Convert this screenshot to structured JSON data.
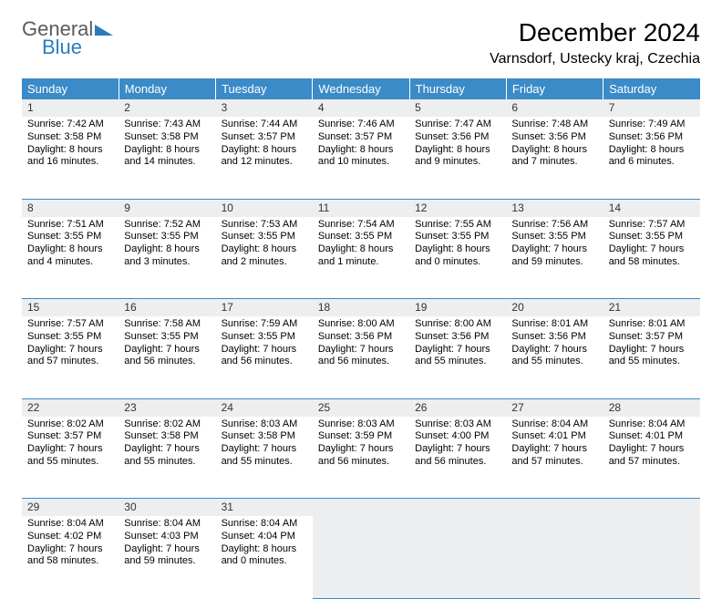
{
  "logo": {
    "line1": "General",
    "line2": "Blue",
    "icon_color": "#2b7bbd",
    "text_gray": "#5a5a5a"
  },
  "title": "December 2024",
  "location": "Varnsdorf, Ustecky kraj, Czechia",
  "colors": {
    "header_bg": "#3b8bc8",
    "header_fg": "#ffffff",
    "cell_border": "#3b8bc8",
    "daynum_bg": "#eceeef",
    "body_bg": "#ffffff"
  },
  "day_headers": [
    "Sunday",
    "Monday",
    "Tuesday",
    "Wednesday",
    "Thursday",
    "Friday",
    "Saturday"
  ],
  "weeks": [
    [
      {
        "n": "1",
        "sr": "7:42 AM",
        "ss": "3:58 PM",
        "dl": "8 hours and 16 minutes."
      },
      {
        "n": "2",
        "sr": "7:43 AM",
        "ss": "3:58 PM",
        "dl": "8 hours and 14 minutes."
      },
      {
        "n": "3",
        "sr": "7:44 AM",
        "ss": "3:57 PM",
        "dl": "8 hours and 12 minutes."
      },
      {
        "n": "4",
        "sr": "7:46 AM",
        "ss": "3:57 PM",
        "dl": "8 hours and 10 minutes."
      },
      {
        "n": "5",
        "sr": "7:47 AM",
        "ss": "3:56 PM",
        "dl": "8 hours and 9 minutes."
      },
      {
        "n": "6",
        "sr": "7:48 AM",
        "ss": "3:56 PM",
        "dl": "8 hours and 7 minutes."
      },
      {
        "n": "7",
        "sr": "7:49 AM",
        "ss": "3:56 PM",
        "dl": "8 hours and 6 minutes."
      }
    ],
    [
      {
        "n": "8",
        "sr": "7:51 AM",
        "ss": "3:55 PM",
        "dl": "8 hours and 4 minutes."
      },
      {
        "n": "9",
        "sr": "7:52 AM",
        "ss": "3:55 PM",
        "dl": "8 hours and 3 minutes."
      },
      {
        "n": "10",
        "sr": "7:53 AM",
        "ss": "3:55 PM",
        "dl": "8 hours and 2 minutes."
      },
      {
        "n": "11",
        "sr": "7:54 AM",
        "ss": "3:55 PM",
        "dl": "8 hours and 1 minute."
      },
      {
        "n": "12",
        "sr": "7:55 AM",
        "ss": "3:55 PM",
        "dl": "8 hours and 0 minutes."
      },
      {
        "n": "13",
        "sr": "7:56 AM",
        "ss": "3:55 PM",
        "dl": "7 hours and 59 minutes."
      },
      {
        "n": "14",
        "sr": "7:57 AM",
        "ss": "3:55 PM",
        "dl": "7 hours and 58 minutes."
      }
    ],
    [
      {
        "n": "15",
        "sr": "7:57 AM",
        "ss": "3:55 PM",
        "dl": "7 hours and 57 minutes."
      },
      {
        "n": "16",
        "sr": "7:58 AM",
        "ss": "3:55 PM",
        "dl": "7 hours and 56 minutes."
      },
      {
        "n": "17",
        "sr": "7:59 AM",
        "ss": "3:55 PM",
        "dl": "7 hours and 56 minutes."
      },
      {
        "n": "18",
        "sr": "8:00 AM",
        "ss": "3:56 PM",
        "dl": "7 hours and 56 minutes."
      },
      {
        "n": "19",
        "sr": "8:00 AM",
        "ss": "3:56 PM",
        "dl": "7 hours and 55 minutes."
      },
      {
        "n": "20",
        "sr": "8:01 AM",
        "ss": "3:56 PM",
        "dl": "7 hours and 55 minutes."
      },
      {
        "n": "21",
        "sr": "8:01 AM",
        "ss": "3:57 PM",
        "dl": "7 hours and 55 minutes."
      }
    ],
    [
      {
        "n": "22",
        "sr": "8:02 AM",
        "ss": "3:57 PM",
        "dl": "7 hours and 55 minutes."
      },
      {
        "n": "23",
        "sr": "8:02 AM",
        "ss": "3:58 PM",
        "dl": "7 hours and 55 minutes."
      },
      {
        "n": "24",
        "sr": "8:03 AM",
        "ss": "3:58 PM",
        "dl": "7 hours and 55 minutes."
      },
      {
        "n": "25",
        "sr": "8:03 AM",
        "ss": "3:59 PM",
        "dl": "7 hours and 56 minutes."
      },
      {
        "n": "26",
        "sr": "8:03 AM",
        "ss": "4:00 PM",
        "dl": "7 hours and 56 minutes."
      },
      {
        "n": "27",
        "sr": "8:04 AM",
        "ss": "4:01 PM",
        "dl": "7 hours and 57 minutes."
      },
      {
        "n": "28",
        "sr": "8:04 AM",
        "ss": "4:01 PM",
        "dl": "7 hours and 57 minutes."
      }
    ],
    [
      {
        "n": "29",
        "sr": "8:04 AM",
        "ss": "4:02 PM",
        "dl": "7 hours and 58 minutes."
      },
      {
        "n": "30",
        "sr": "8:04 AM",
        "ss": "4:03 PM",
        "dl": "7 hours and 59 minutes."
      },
      {
        "n": "31",
        "sr": "8:04 AM",
        "ss": "4:04 PM",
        "dl": "8 hours and 0 minutes."
      },
      null,
      null,
      null,
      null
    ]
  ],
  "labels": {
    "sunrise": "Sunrise:",
    "sunset": "Sunset:",
    "daylight": "Daylight:"
  }
}
